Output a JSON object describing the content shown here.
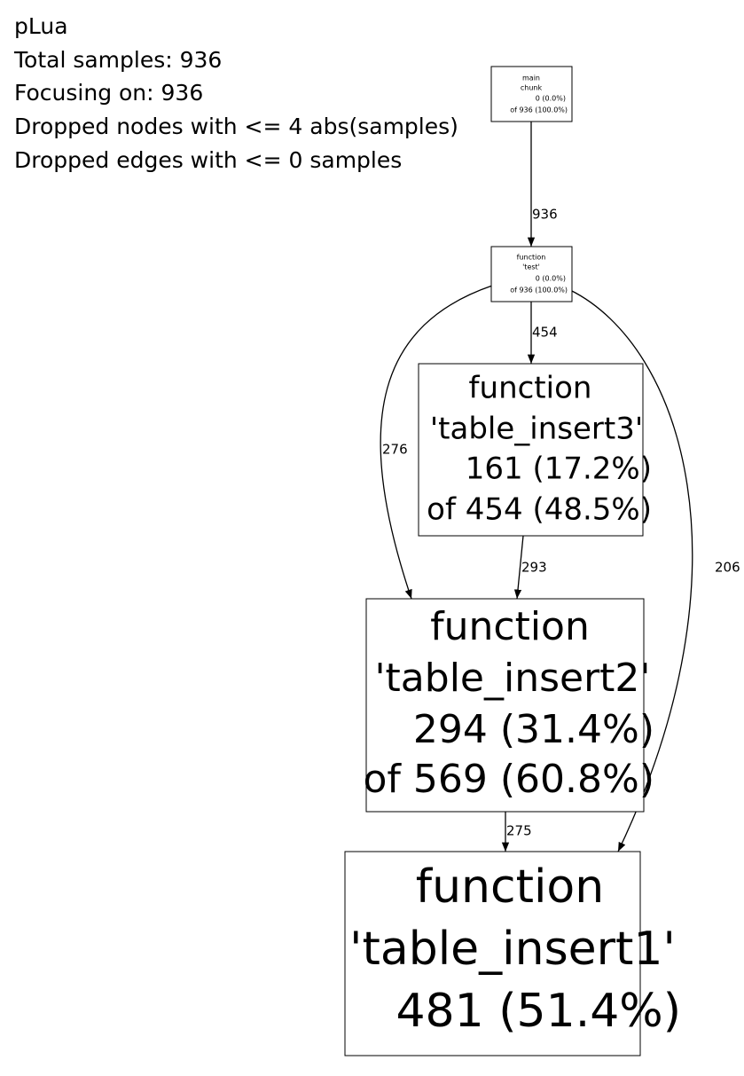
{
  "header": {
    "lines": [
      "pLua",
      "Total samples: 936",
      "Focusing on: 936",
      "Dropped nodes with <= 4 abs(samples)",
      "Dropped edges with <= 0 samples"
    ]
  },
  "nodes": [
    {
      "lines": [
        "main",
        "chunk",
        "0 (0.0%)",
        "of 936 (100.0%)"
      ]
    },
    {
      "lines": [
        "function",
        "'test'",
        "0 (0.0%)",
        "of 936 (100.0%)"
      ]
    },
    {
      "lines": [
        "function",
        "'table_insert3'",
        "161 (17.2%)",
        "of 454 (48.5%)"
      ]
    },
    {
      "lines": [
        "function",
        "'table_insert2'",
        "294 (31.4%)",
        "of 569 (60.8%)"
      ]
    },
    {
      "lines": [
        "function",
        "'table_insert1'",
        "481 (51.4%)"
      ]
    }
  ],
  "edges": [
    {
      "label": "936"
    },
    {
      "label": "454"
    },
    {
      "label": "276"
    },
    {
      "label": "293"
    },
    {
      "label": "206"
    },
    {
      "label": "275"
    }
  ]
}
